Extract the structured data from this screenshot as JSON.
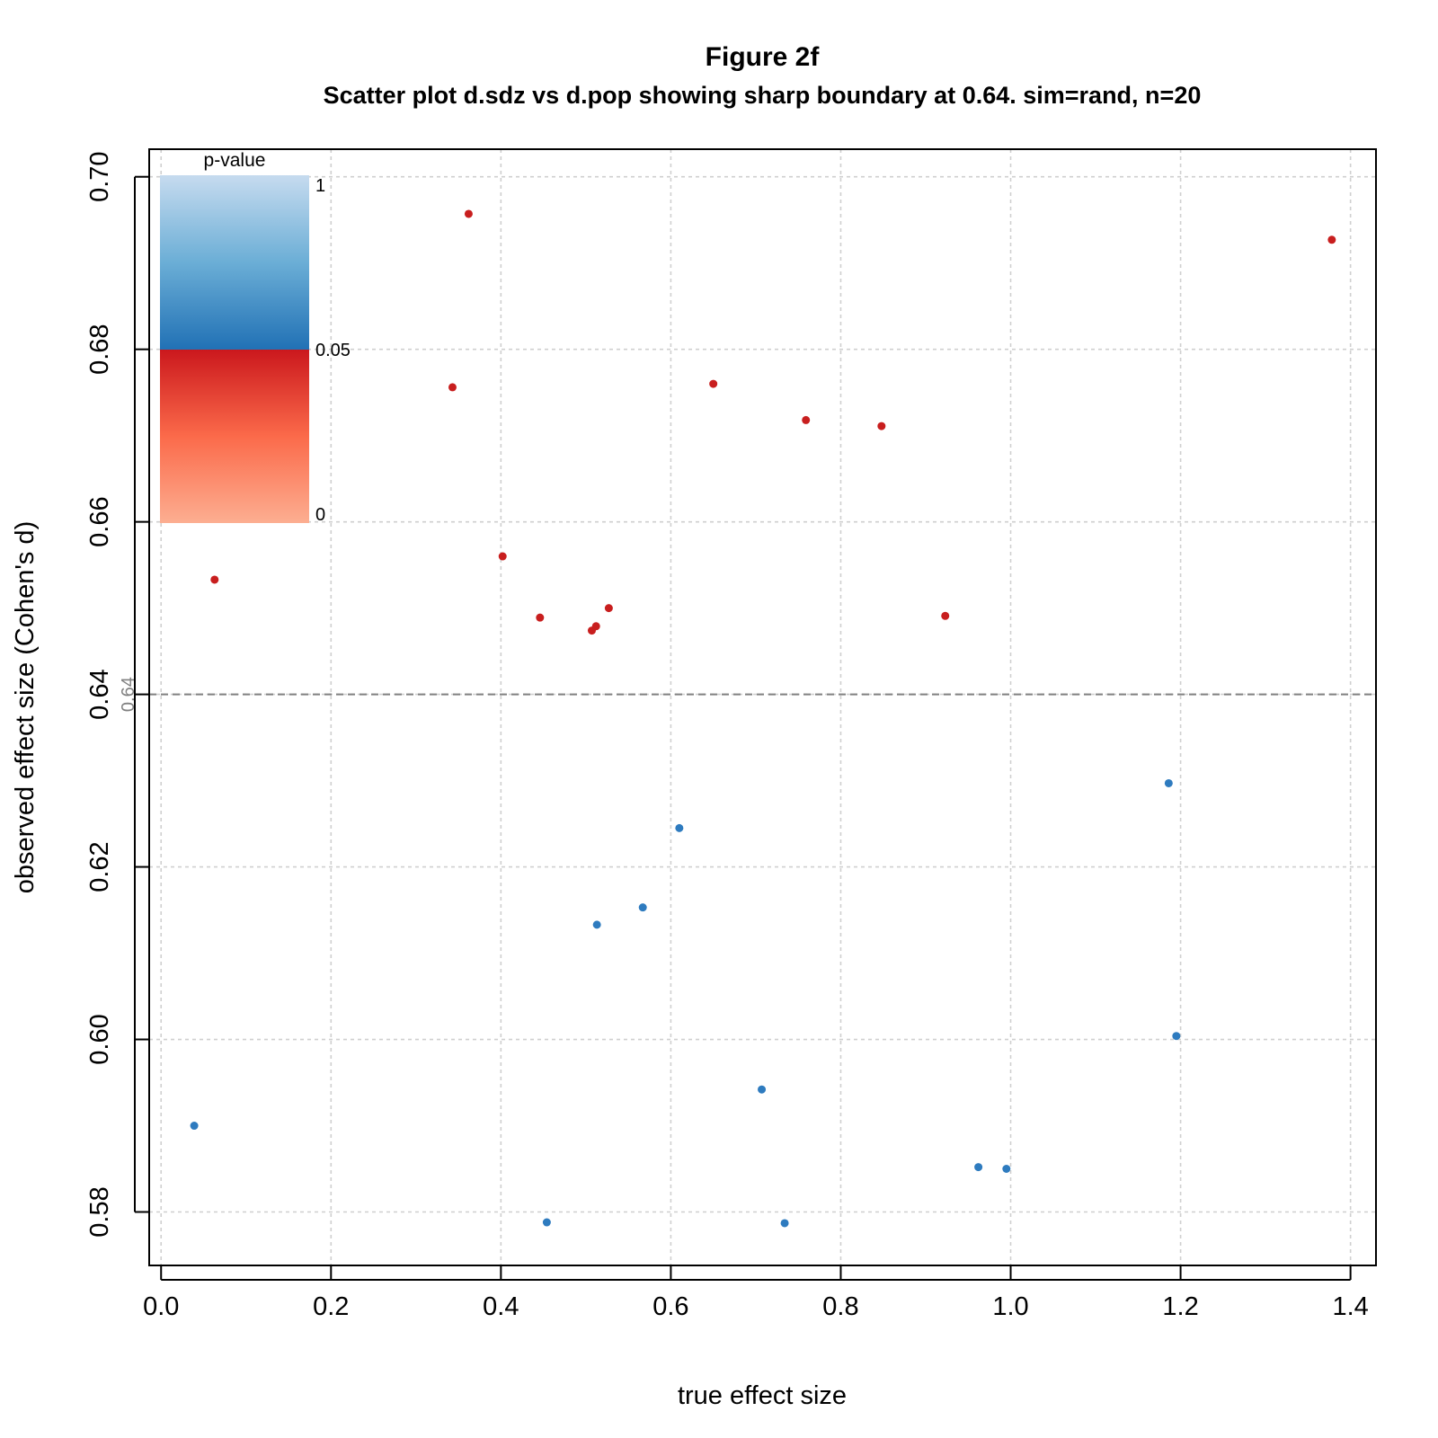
{
  "chart_data": {
    "type": "scatter",
    "title": "Figure 2f",
    "subtitle": "Scatter plot d.sdz vs d.pop showing sharp boundary at 0.64. sim=rand, n=20",
    "xlabel": "true effect size",
    "ylabel": "observed effect size (Cohen's d)",
    "xlim": [
      -0.014,
      1.43
    ],
    "ylim": [
      0.5738,
      0.7032
    ],
    "x_ticks": [
      "0.0",
      "0.2",
      "0.4",
      "0.6",
      "0.8",
      "1.0",
      "1.2",
      "1.4"
    ],
    "y_ticks": [
      "0.58",
      "0.60",
      "0.62",
      "0.64",
      "0.66",
      "0.68",
      "0.70"
    ],
    "grid": true,
    "reference_line": {
      "y": 0.64,
      "label": "0.64",
      "color": "#808080",
      "style": "dashed"
    },
    "legend": {
      "title": "p-value",
      "placement": "top-left",
      "ticks": [
        "1",
        "0.05",
        "0"
      ],
      "gradient_significant": [
        "#fcae91",
        "#fb6a4a",
        "#cb181d"
      ],
      "gradient_nonsignificant": [
        "#2171b5",
        "#6baed6",
        "#c6dbef"
      ]
    },
    "colors": {
      "significant": "#c81e1e",
      "nonsignificant": "#2e7bbf"
    },
    "series": [
      {
        "color": "#c81e1e",
        "points": [
          {
            "x": 0.063,
            "y": 0.6533
          },
          {
            "x": 0.343,
            "y": 0.6756
          },
          {
            "x": 0.362,
            "y": 0.6957
          },
          {
            "x": 0.402,
            "y": 0.656
          },
          {
            "x": 0.446,
            "y": 0.6489
          },
          {
            "x": 0.507,
            "y": 0.6474
          },
          {
            "x": 0.512,
            "y": 0.6479
          },
          {
            "x": 0.527,
            "y": 0.65
          },
          {
            "x": 0.65,
            "y": 0.676
          },
          {
            "x": 0.759,
            "y": 0.6718
          },
          {
            "x": 0.848,
            "y": 0.6711
          },
          {
            "x": 0.923,
            "y": 0.6491
          },
          {
            "x": 1.378,
            "y": 0.6927
          }
        ]
      },
      {
        "color": "#2e7bbf",
        "points": [
          {
            "x": 0.039,
            "y": 0.59
          },
          {
            "x": 0.454,
            "y": 0.5788
          },
          {
            "x": 0.513,
            "y": 0.6133
          },
          {
            "x": 0.567,
            "y": 0.6153
          },
          {
            "x": 0.61,
            "y": 0.6245
          },
          {
            "x": 0.707,
            "y": 0.5942
          },
          {
            "x": 0.734,
            "y": 0.5787
          },
          {
            "x": 0.962,
            "y": 0.5852
          },
          {
            "x": 0.995,
            "y": 0.585
          },
          {
            "x": 1.186,
            "y": 0.6297
          },
          {
            "x": 1.195,
            "y": 0.6004
          }
        ]
      }
    ]
  }
}
